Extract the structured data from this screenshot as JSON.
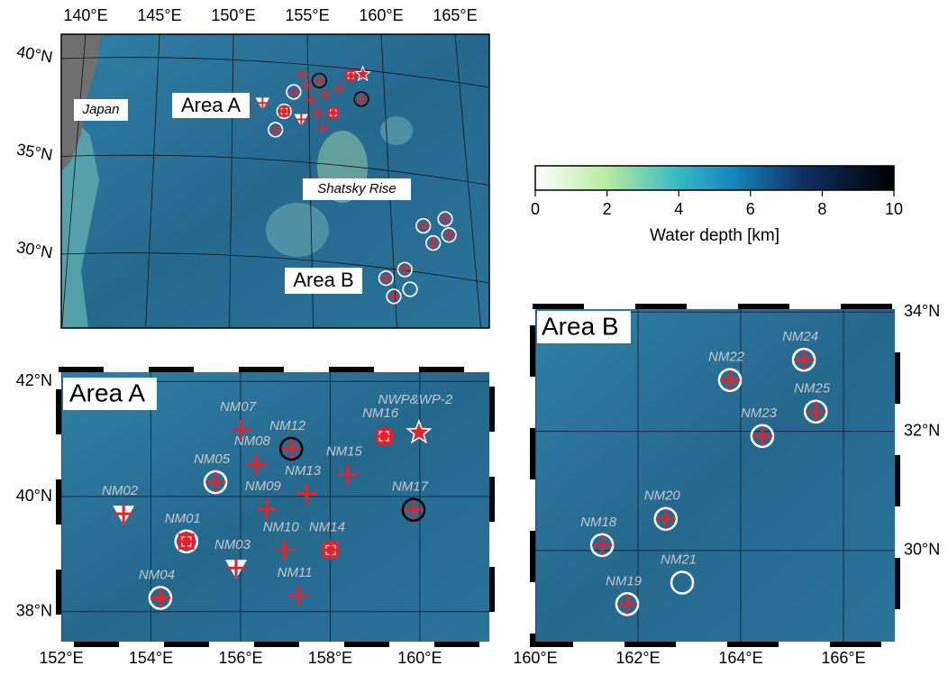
{
  "overview": {
    "lon_ticks": [
      {
        "value": 140,
        "label": "140°E"
      },
      {
        "value": 145,
        "label": "145°E"
      },
      {
        "value": 150,
        "label": "150°E"
      },
      {
        "value": 155,
        "label": "155°E"
      },
      {
        "value": 160,
        "label": "160°E"
      },
      {
        "value": 165,
        "label": "165°E"
      }
    ],
    "lat_ticks": [
      {
        "value": 40,
        "label": "40°N"
      },
      {
        "value": 35,
        "label": "35°N"
      },
      {
        "value": 30,
        "label": "30°N"
      }
    ],
    "labels": {
      "japan": "Japan",
      "area_a": "Area A",
      "shatsky": "Shatsky Rise",
      "area_b": "Area B"
    }
  },
  "colorbar": {
    "lim": [
      0,
      10
    ],
    "ticks": [
      0,
      2,
      4,
      6,
      8,
      10
    ],
    "label": "Water depth [km]"
  },
  "area_a": {
    "title": "Area A",
    "xlim": [
      152,
      161.55
    ],
    "ylim": [
      37.48,
      42.16
    ],
    "xticks": [
      {
        "value": 152,
        "label": "152°E"
      },
      {
        "value": 154,
        "label": "154°E"
      },
      {
        "value": 156,
        "label": "156°E"
      },
      {
        "value": 158,
        "label": "158°E"
      },
      {
        "value": 160,
        "label": "160°E"
      }
    ],
    "yticks": [
      {
        "value": 38,
        "label": "38°N"
      },
      {
        "value": 40,
        "label": "40°N"
      },
      {
        "value": 42,
        "label": "42°N"
      }
    ],
    "stations": [
      {
        "name": "NM01",
        "lon": 154.79,
        "lat": 39.22,
        "marker": "circle-square"
      },
      {
        "name": "NM02",
        "lon": 153.39,
        "lat": 39.7,
        "marker": "triangle"
      },
      {
        "name": "NM03",
        "lon": 155.9,
        "lat": 38.76,
        "marker": "triangle"
      },
      {
        "name": "NM04",
        "lon": 154.21,
        "lat": 38.24,
        "marker": "circle"
      },
      {
        "name": "NM05",
        "lon": 155.44,
        "lat": 40.25,
        "marker": "circle"
      },
      {
        "name": "NM07",
        "lon": 156.02,
        "lat": 41.16,
        "marker": "cross"
      },
      {
        "name": "NM08",
        "lon": 156.34,
        "lat": 40.56,
        "marker": "cross"
      },
      {
        "name": "NM09",
        "lon": 156.58,
        "lat": 39.78,
        "marker": "cross"
      },
      {
        "name": "NM10",
        "lon": 156.98,
        "lat": 39.07,
        "marker": "cross"
      },
      {
        "name": "NM11",
        "lon": 157.29,
        "lat": 38.28,
        "marker": "cross"
      },
      {
        "name": "NM12",
        "lon": 157.13,
        "lat": 40.83,
        "marker": "black-circle"
      },
      {
        "name": "NM13",
        "lon": 157.47,
        "lat": 40.05,
        "marker": "cross"
      },
      {
        "name": "NM14",
        "lon": 158.01,
        "lat": 39.07,
        "marker": "square"
      },
      {
        "name": "NM15",
        "lon": 158.39,
        "lat": 40.38,
        "marker": "cross"
      },
      {
        "name": "NM16",
        "lon": 159.2,
        "lat": 41.05,
        "marker": "square"
      },
      {
        "name": "NM17",
        "lon": 159.86,
        "lat": 39.77,
        "marker": "black-circle"
      },
      {
        "name": "NWP&WP-2",
        "lon": 159.98,
        "lat": 41.11,
        "marker": "star"
      }
    ]
  },
  "area_b": {
    "title": "Area B",
    "xlim": [
      160,
      167
    ],
    "ylim": [
      28.47,
      34.05
    ],
    "xticks": [
      {
        "value": 160,
        "label": "160°E"
      },
      {
        "value": 162,
        "label": "162°E"
      },
      {
        "value": 164,
        "label": "164°E"
      },
      {
        "value": 166,
        "label": "166°E"
      }
    ],
    "yticks": [
      {
        "value": 30,
        "label": "30°N"
      },
      {
        "value": 32,
        "label": "32°N"
      },
      {
        "value": 34,
        "label": "34°N"
      }
    ],
    "stations": [
      {
        "name": "NM18",
        "lon": 161.3,
        "lat": 30.09,
        "marker": "circle"
      },
      {
        "name": "NM19",
        "lon": 161.79,
        "lat": 29.1,
        "marker": "circle"
      },
      {
        "name": "NM20",
        "lon": 162.54,
        "lat": 30.53,
        "marker": "circle"
      },
      {
        "name": "NM21",
        "lon": 162.86,
        "lat": 29.46,
        "marker": "open-circle"
      },
      {
        "name": "NM22",
        "lon": 163.79,
        "lat": 32.86,
        "marker": "circle"
      },
      {
        "name": "NM23",
        "lon": 164.42,
        "lat": 31.92,
        "marker": "circle"
      },
      {
        "name": "NM24",
        "lon": 165.23,
        "lat": 33.2,
        "marker": "circle"
      },
      {
        "name": "NM25",
        "lon": 165.46,
        "lat": 32.33,
        "marker": "circle"
      }
    ]
  }
}
